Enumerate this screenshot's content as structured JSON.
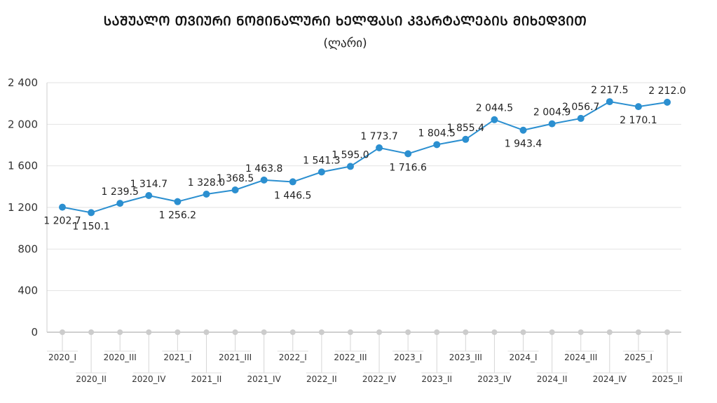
{
  "chart_data": {
    "type": "line",
    "title": "ᲡᲐᲨᲣᲐᲚᲝ ᲗᲕᲘᲣᲠᲘ ᲜᲝᲛᲘᲜᲐᲚᲣᲠᲘ ᲮᲔᲚᲤᲐᲡᲘ ᲙᲕᲐᲠᲢᲐᲚᲔᲑᲘᲡ ᲛᲘᲮᲔᲓᲕᲘᲗ",
    "subtitle": "(ლარი)",
    "categories": [
      "2020_I",
      "2020_II",
      "2020_III",
      "2020_IV",
      "2021_I",
      "2021_II",
      "2021_III",
      "2021_IV",
      "2022_I",
      "2022_II",
      "2022_III",
      "2022_IV",
      "2023_I",
      "2023_II",
      "2023_III",
      "2023_IV",
      "2024_I",
      "2024_II",
      "2024_III",
      "2024_IV",
      "2025_I",
      "2025_II"
    ],
    "series": [
      {
        "values": [
          1202.7,
          1150.1,
          1239.5,
          1314.7,
          1256.2,
          1328.0,
          1368.5,
          1463.8,
          1446.5,
          1541.3,
          1595.0,
          1773.7,
          1716.6,
          1804.5,
          1855.4,
          2044.5,
          1943.4,
          2004.9,
          2056.7,
          2217.5,
          2170.1,
          2212.0
        ],
        "labels": [
          "1 202.7",
          "1 150.1",
          "1 239.5",
          "1 314.7",
          "1 256.2",
          "1 328.0",
          "1 368.5",
          "1 463.8",
          "1 446.5",
          "1 541.3",
          "1 595.0",
          "1 773.7",
          "1 716.6",
          "1 804.5",
          "1 855.4",
          "2 044.5",
          "1 943.4",
          "2 004.9",
          "2 056.7",
          "2 217.5",
          "2 170.1",
          "2 212.0"
        ],
        "color": "#2b8fd0"
      }
    ],
    "ylim": [
      0,
      2400
    ],
    "yticks": [
      0,
      400,
      800,
      1200,
      1600,
      2000,
      2400
    ],
    "ytick_labels": [
      "0",
      "400",
      "800",
      "1 200",
      "1 600",
      "2 000",
      "2 400"
    ],
    "grid": true,
    "legend": false
  }
}
